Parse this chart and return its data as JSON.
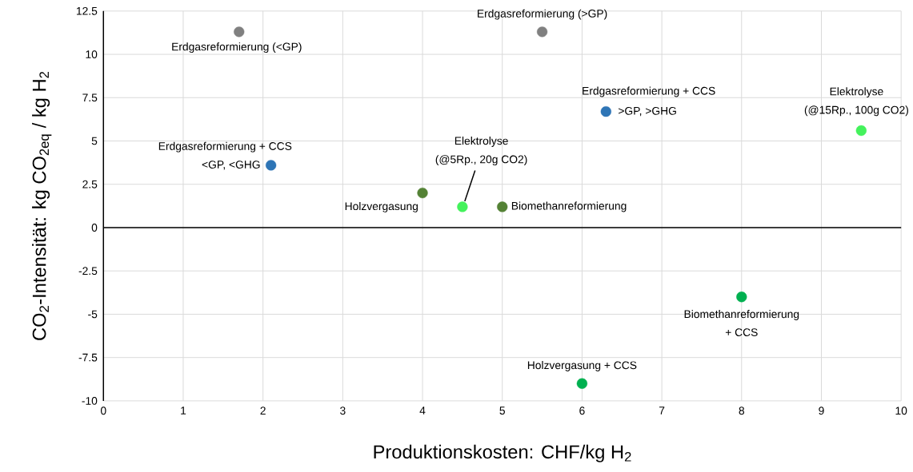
{
  "chart_data": {
    "type": "scatter",
    "xlabel": "Produktionskosten: CHF/kg H$_{2}$",
    "ylabel": "CO$_{2}$-Intensität: kg CO$_{2eq}$ / kg H$_{2}$",
    "series": [
      {
        "color": "#808080",
        "x": [
          1.7,
          5.5
        ],
        "values": [
          11.3,
          11.3
        ]
      },
      {
        "color": "#2e75b6",
        "x": [
          2.1,
          6.3
        ],
        "values": [
          3.6,
          6.7
        ]
      },
      {
        "color": "#548235",
        "x": [
          4,
          5
        ],
        "values": [
          2,
          1.2
        ]
      },
      {
        "color": "#44f25c",
        "x": [
          4.5,
          9.5
        ],
        "values": [
          1.2,
          5.6
        ]
      },
      {
        "color": "#00b050",
        "x": [
          8,
          6
        ],
        "values": [
          -4,
          -9
        ]
      }
    ],
    "annotations": [
      {
        "text": "Erdgasreformierung (<GP)",
        "x": 1.7,
        "y": 11.3
      },
      {
        "text": "Erdgasreformierung (>GP)",
        "x": 5.5,
        "y": 11.3
      },
      {
        "text": "Erdgasreformierung + CCS",
        "x": 2.1,
        "y": 3.6
      },
      {
        "text": "<GP, <GHG",
        "x": 2.1,
        "y": 3.6
      },
      {
        "text": "Erdgasreformierung + CCS",
        "x": 6.3,
        "y": 6.7
      },
      {
        "text": ">GP, >GHG",
        "x": 6.3,
        "y": 6.7
      },
      {
        "text": "(@15Rp., 100g CO2)",
        "x": 9.5,
        "y": 5.6
      },
      "Elektrolyse",
      {
        "text": "Holzvergasung",
        "x": 4,
        "y": 2
      },
      {
        "text": "(@5Rp., 20g CO2)",
        "x": 4.5,
        "y": 1.2
      },
      "Elektrolyse",
      {
        "text": "Biomethanreformierung",
        "x": 5,
        "y": 1.2
      },
      {
        "text": "Biomethanreformierung",
        "x": 8,
        "y": -4
      },
      "+ CCS",
      {
        "text": "Holzvergasung + CCS",
        "x": 6,
        "y": -9
      }
    ],
    "xlim": [
      0,
      10
    ],
    "ylim": [
      -10,
      12.5
    ],
    "xticks": [
      0,
      1,
      2,
      3,
      4,
      5,
      6,
      7,
      8,
      9,
      10
    ],
    "yticks": [
      -10,
      -7.5,
      -5,
      -2.5,
      0,
      2.5,
      5,
      7.5,
      10,
      12.5
    ],
    "grid": true,
    "marker": "circle"
  }
}
